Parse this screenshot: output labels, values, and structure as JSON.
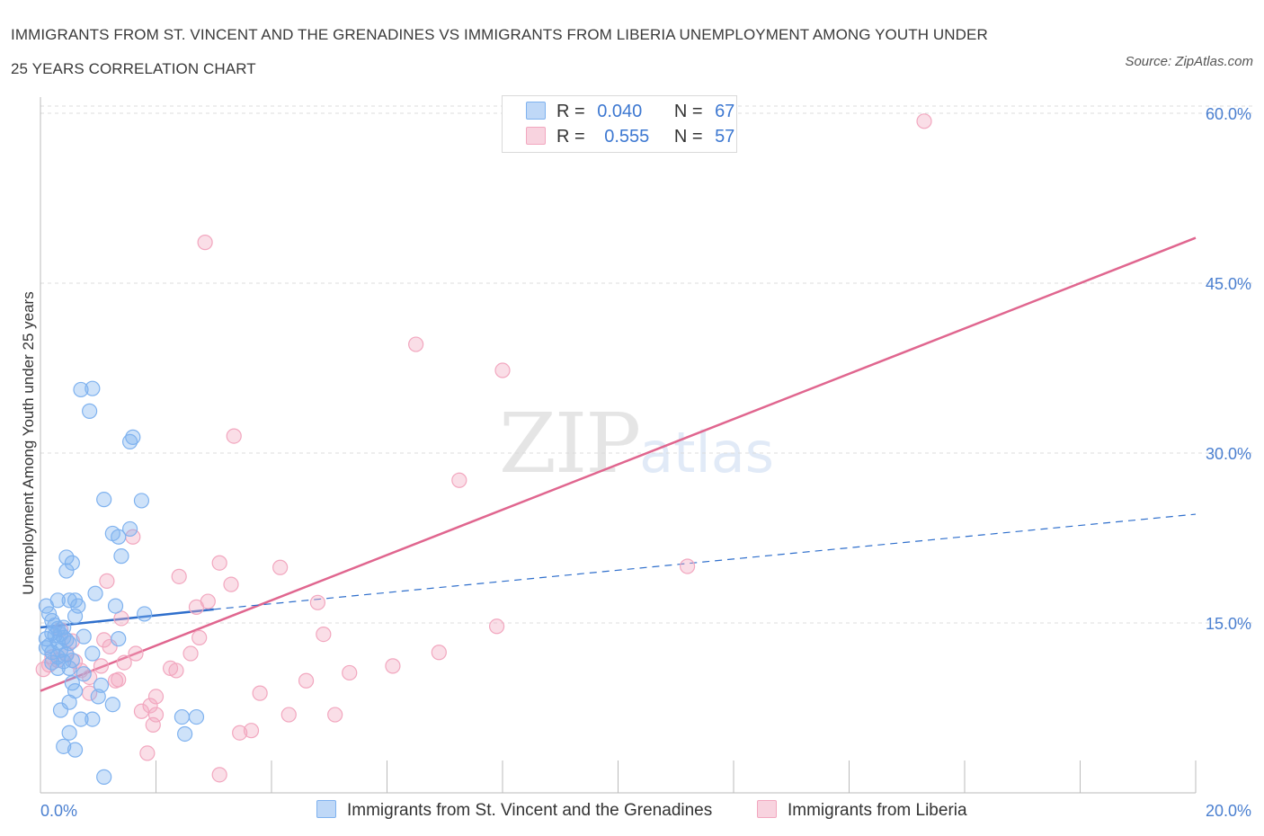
{
  "header": {
    "title_line1": "IMMIGRANTS FROM ST. VINCENT AND THE GRENADINES VS IMMIGRANTS FROM LIBERIA UNEMPLOYMENT AMONG YOUTH UNDER",
    "title_line2": "25 YEARS CORRELATION CHART",
    "source": "Source: ZipAtlas.com"
  },
  "watermark": {
    "zip": "ZIP",
    "atlas": "atlas"
  },
  "legend": {
    "series1": {
      "r_label": "R =",
      "r_value": "0.040",
      "n_label": "N =",
      "n_value": "67",
      "color": "#7fb2ef"
    },
    "series2": {
      "r_label": "R =",
      "r_value": "0.555",
      "n_label": "N =",
      "n_value": "57",
      "color": "#f2a7bf"
    }
  },
  "bottom_legend": {
    "series1": "Immigrants from St. Vincent and the Grenadines",
    "series2": "Immigrants from Liberia"
  },
  "chart_data": {
    "type": "scatter",
    "title": "IMMIGRANTS FROM ST. VINCENT AND THE GRENADINES VS IMMIGRANTS FROM LIBERIA UNEMPLOYMENT AMONG YOUTH UNDER 25 YEARS CORRELATION CHART",
    "xlabel": "",
    "ylabel": "Unemployment Among Youth under 25 years",
    "xlim": [
      0,
      20
    ],
    "ylim": [
      0,
      60
    ],
    "x_tick_labels": [
      "0.0%",
      "20.0%"
    ],
    "y_ticks": [
      15,
      30,
      45,
      60
    ],
    "y_tick_labels": [
      "15.0%",
      "30.0%",
      "45.0%",
      "60.0%"
    ],
    "grid": true,
    "series": [
      {
        "name": "Immigrants from St. Vincent and the Grenadines",
        "color": "#7fb2ef",
        "line_color": "#2f6fcc",
        "R": 0.04,
        "N": 67,
        "trend_solid": [
          [
            0,
            14.6
          ],
          [
            3.0,
            16.2
          ]
        ],
        "trend_dashed": [
          [
            3.0,
            16.2
          ],
          [
            20,
            24.6
          ]
        ],
        "points": [
          [
            0.1,
            16.5
          ],
          [
            0.15,
            15.8
          ],
          [
            0.2,
            15.2
          ],
          [
            0.25,
            14.8
          ],
          [
            0.3,
            14.5
          ],
          [
            0.35,
            14.0
          ],
          [
            0.4,
            13.7
          ],
          [
            0.45,
            13.5
          ],
          [
            0.5,
            13.2
          ],
          [
            0.1,
            12.8
          ],
          [
            0.2,
            12.4
          ],
          [
            0.3,
            12.0
          ],
          [
            0.4,
            11.6
          ],
          [
            0.15,
            13.0
          ],
          [
            0.25,
            13.9
          ],
          [
            0.35,
            12.6
          ],
          [
            0.45,
            12.2
          ],
          [
            0.55,
            11.7
          ],
          [
            0.3,
            17.0
          ],
          [
            0.5,
            17.0
          ],
          [
            0.6,
            17.0
          ],
          [
            0.65,
            16.5
          ],
          [
            0.6,
            15.6
          ],
          [
            0.95,
            17.6
          ],
          [
            1.3,
            16.5
          ],
          [
            1.8,
            15.8
          ],
          [
            0.55,
            20.3
          ],
          [
            0.45,
            20.8
          ],
          [
            0.45,
            19.6
          ],
          [
            0.75,
            13.8
          ],
          [
            1.35,
            13.6
          ],
          [
            0.9,
            12.3
          ],
          [
            0.9,
            35.7
          ],
          [
            0.7,
            35.6
          ],
          [
            0.85,
            33.7
          ],
          [
            1.6,
            31.4
          ],
          [
            1.55,
            31.0
          ],
          [
            1.1,
            25.9
          ],
          [
            1.75,
            25.8
          ],
          [
            1.25,
            22.9
          ],
          [
            1.55,
            23.3
          ],
          [
            1.35,
            22.6
          ],
          [
            1.4,
            20.9
          ],
          [
            0.5,
            11.0
          ],
          [
            0.55,
            9.7
          ],
          [
            1.0,
            8.5
          ],
          [
            0.5,
            8.0
          ],
          [
            1.25,
            7.8
          ],
          [
            0.35,
            7.3
          ],
          [
            0.7,
            6.5
          ],
          [
            0.9,
            6.5
          ],
          [
            2.45,
            6.7
          ],
          [
            2.7,
            6.7
          ],
          [
            0.5,
            5.3
          ],
          [
            2.5,
            5.2
          ],
          [
            0.4,
            4.1
          ],
          [
            0.6,
            3.8
          ],
          [
            1.1,
            1.4
          ],
          [
            0.2,
            14.1
          ],
          [
            0.3,
            13.3
          ],
          [
            0.4,
            14.6
          ],
          [
            0.1,
            13.6
          ],
          [
            0.2,
            11.5
          ],
          [
            0.3,
            11.0
          ],
          [
            0.6,
            9.0
          ],
          [
            0.75,
            10.5
          ],
          [
            1.05,
            9.5
          ]
        ]
      },
      {
        "name": "Immigrants from Liberia",
        "color": "#f2a7bf",
        "line_color": "#e0668f",
        "R": 0.555,
        "N": 57,
        "trend_solid": [
          [
            0,
            9.0
          ],
          [
            20,
            49.0
          ]
        ],
        "points": [
          [
            15.3,
            59.3
          ],
          [
            2.85,
            48.6
          ],
          [
            6.5,
            39.6
          ],
          [
            8.0,
            37.3
          ],
          [
            3.35,
            31.5
          ],
          [
            7.25,
            27.6
          ],
          [
            1.6,
            22.6
          ],
          [
            3.1,
            20.3
          ],
          [
            4.15,
            19.9
          ],
          [
            11.2,
            20.0
          ],
          [
            2.4,
            19.1
          ],
          [
            1.15,
            18.7
          ],
          [
            3.3,
            18.4
          ],
          [
            4.8,
            16.8
          ],
          [
            2.9,
            16.9
          ],
          [
            2.7,
            16.4
          ],
          [
            1.4,
            15.4
          ],
          [
            7.9,
            14.7
          ],
          [
            4.9,
            14.0
          ],
          [
            2.75,
            13.7
          ],
          [
            1.1,
            13.5
          ],
          [
            1.2,
            12.9
          ],
          [
            6.9,
            12.4
          ],
          [
            2.6,
            12.3
          ],
          [
            1.65,
            12.3
          ],
          [
            0.2,
            12.0
          ],
          [
            0.6,
            11.6
          ],
          [
            1.45,
            11.5
          ],
          [
            1.05,
            11.2
          ],
          [
            6.1,
            11.2
          ],
          [
            2.25,
            11.0
          ],
          [
            2.35,
            10.8
          ],
          [
            5.35,
            10.6
          ],
          [
            0.7,
            10.8
          ],
          [
            4.6,
            9.9
          ],
          [
            1.3,
            9.9
          ],
          [
            0.85,
            8.8
          ],
          [
            2.0,
            8.5
          ],
          [
            3.8,
            8.8
          ],
          [
            1.75,
            7.2
          ],
          [
            2.0,
            6.9
          ],
          [
            4.3,
            6.9
          ],
          [
            5.1,
            6.9
          ],
          [
            1.95,
            6.0
          ],
          [
            3.45,
            5.3
          ],
          [
            3.65,
            5.5
          ],
          [
            1.85,
            3.5
          ],
          [
            3.1,
            1.6
          ],
          [
            0.15,
            11.3
          ],
          [
            0.3,
            11.7
          ],
          [
            0.45,
            12.3
          ],
          [
            0.55,
            13.4
          ],
          [
            0.35,
            14.4
          ],
          [
            0.05,
            10.9
          ],
          [
            0.85,
            10.2
          ],
          [
            1.35,
            10.0
          ],
          [
            1.9,
            7.7
          ]
        ]
      }
    ]
  }
}
